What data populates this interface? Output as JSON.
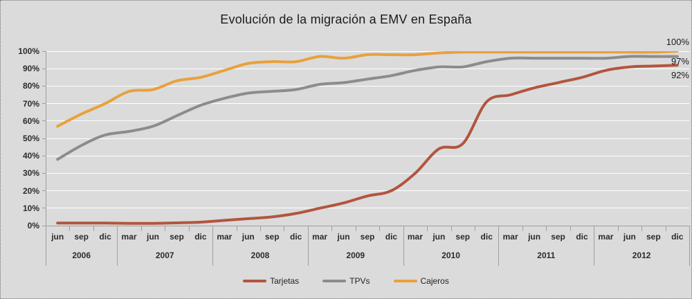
{
  "chart_data": {
    "type": "line",
    "title": "Evolución de la migración a EMV en España",
    "x_quarters": [
      "jun",
      "sep",
      "dic",
      "mar",
      "jun",
      "sep",
      "dic",
      "mar",
      "jun",
      "sep",
      "dic",
      "mar",
      "jun",
      "sep",
      "dic",
      "mar",
      "jun",
      "sep",
      "dic",
      "mar",
      "jun",
      "sep",
      "dic",
      "mar",
      "jun",
      "sep",
      "dic"
    ],
    "year_groups": [
      {
        "year": "2006",
        "quarters": 3
      },
      {
        "year": "2007",
        "quarters": 4
      },
      {
        "year": "2008",
        "quarters": 4
      },
      {
        "year": "2009",
        "quarters": 4
      },
      {
        "year": "2010",
        "quarters": 4
      },
      {
        "year": "2011",
        "quarters": 4
      },
      {
        "year": "2012",
        "quarters": 4
      }
    ],
    "y_ticks": [
      "100%",
      "90%",
      "80%",
      "70%",
      "60%",
      "50%",
      "40%",
      "30%",
      "20%",
      "10%",
      "0%"
    ],
    "ylim": [
      0,
      100
    ],
    "grid": true,
    "legend_position": "bottom",
    "series": [
      {
        "name": "Tarjetas",
        "color": "#B2553E",
        "end_label": "92%",
        "values": [
          1.5,
          1.5,
          1.5,
          1.3,
          1.3,
          1.6,
          2,
          3,
          4,
          5,
          7,
          10,
          13,
          17,
          20,
          30,
          44,
          47,
          71,
          75,
          79,
          82,
          85,
          89,
          91,
          91.5,
          92
        ]
      },
      {
        "name": "TPVs",
        "color": "#8C8C8C",
        "end_label": "97%",
        "values": [
          38,
          46,
          52,
          54,
          57,
          63,
          69,
          73,
          76,
          77,
          78,
          81,
          82,
          84,
          86,
          89,
          91,
          91,
          94,
          96,
          96,
          96,
          96,
          96,
          97,
          97,
          97
        ]
      },
      {
        "name": "Cajeros",
        "color": "#E8A13C",
        "end_label": "100%",
        "values": [
          57,
          64,
          70,
          77,
          78,
          83,
          85,
          89,
          93,
          94,
          94,
          97,
          96,
          98,
          98,
          98,
          99,
          99.5,
          99.5,
          99.5,
          99.5,
          99.5,
          99.5,
          99.5,
          99.5,
          99.5,
          100
        ]
      }
    ],
    "legend": [
      "Tarjetas",
      "TPVs",
      "Cajeros"
    ]
  },
  "colors": {
    "background": "#DBDBDB",
    "gridline": "#FFFFFF",
    "axis": "#9E9E9E",
    "tick_text": "#2B2B2B",
    "tarjetas": "#B2553E",
    "tpvs": "#8C8C8C",
    "cajeros": "#E8A13C"
  }
}
